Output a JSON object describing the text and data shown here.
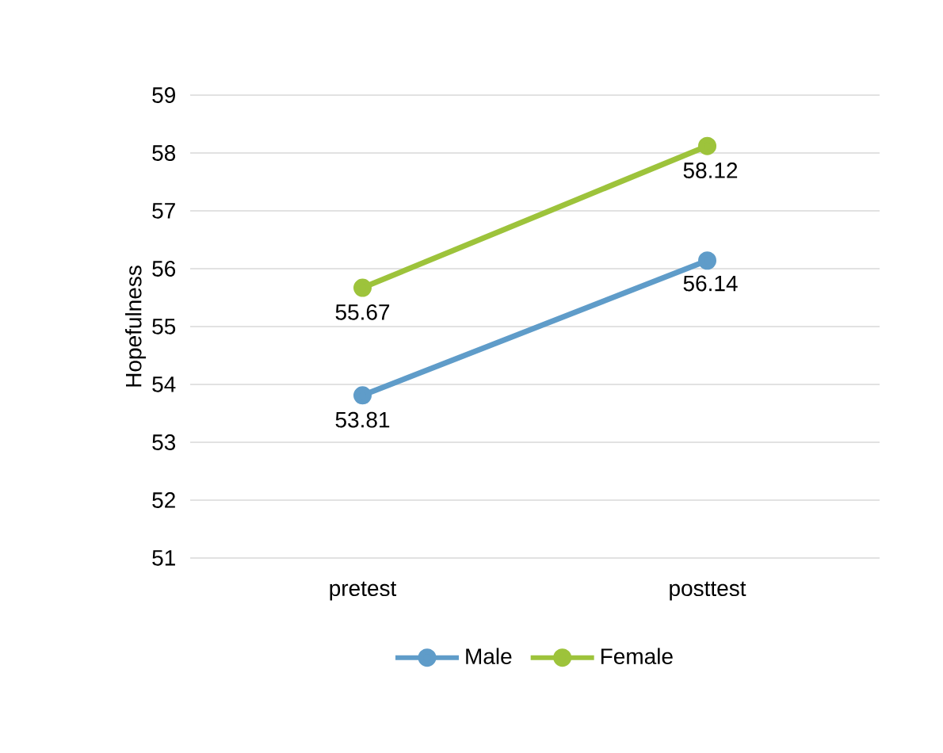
{
  "chart_data": {
    "type": "line",
    "ylabel": "Hopefulness",
    "categories": [
      "pretest",
      "posttest"
    ],
    "series": [
      {
        "name": "Male",
        "color": "#5f9cc9",
        "values": [
          53.81,
          56.14
        ]
      },
      {
        "name": "Female",
        "color": "#9dc33b",
        "values": [
          55.67,
          58.12
        ]
      }
    ],
    "ylim": [
      51,
      59
    ],
    "yticks": [
      51,
      52,
      53,
      54,
      55,
      56,
      57,
      58,
      59
    ],
    "grid": "y",
    "legend": "bottom",
    "marker": "circle",
    "line_style": "solid",
    "data_labels": true
  }
}
